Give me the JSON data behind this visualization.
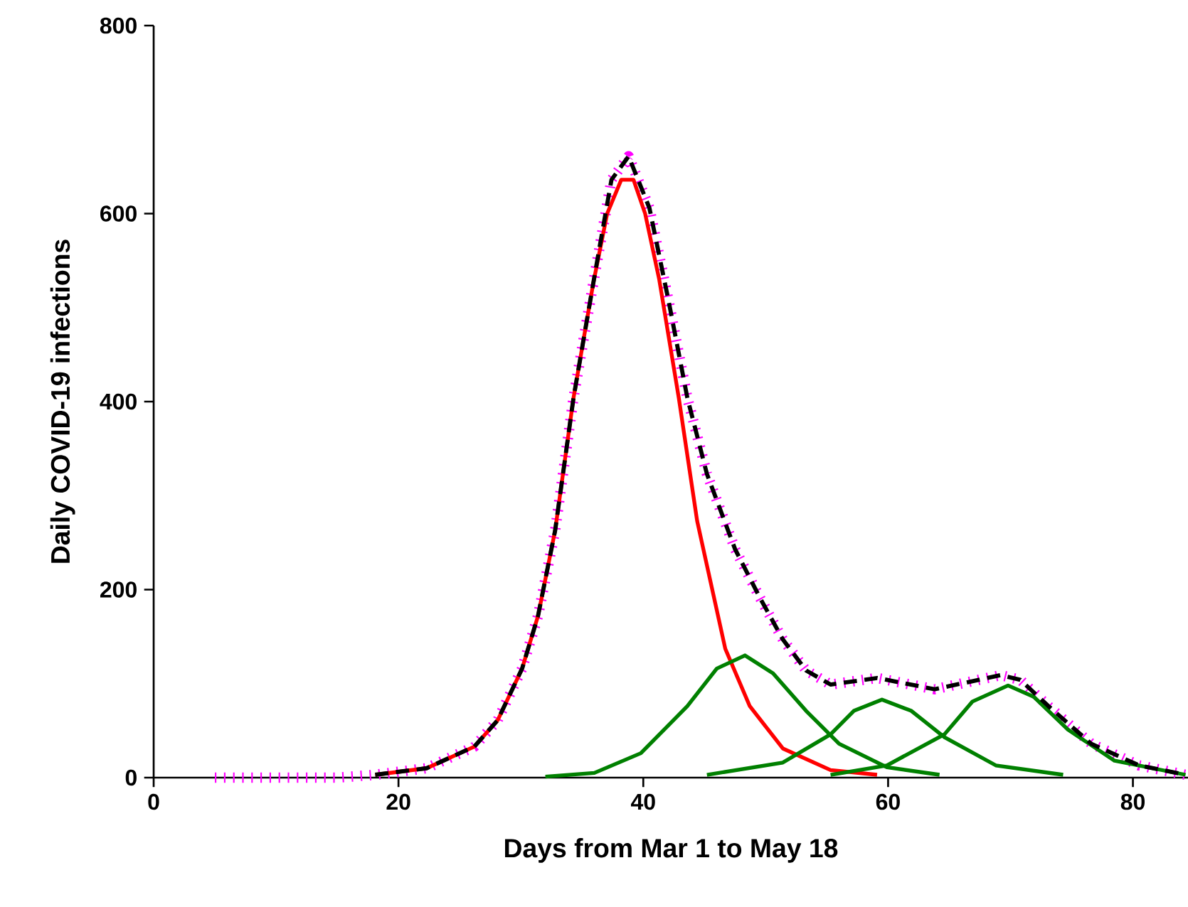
{
  "chart_data": {
    "type": "line",
    "xlabel": "Days from Mar 1 to May 18",
    "ylabel": "Daily COVID-19 infections",
    "xlim": [
      0,
      84.5
    ],
    "xticks": [
      0,
      20,
      40,
      60,
      80
    ],
    "ylim": [
      0,
      800
    ],
    "yticks": [
      0,
      200,
      400,
      600,
      800
    ],
    "marker": "none",
    "series": [
      {
        "color": "#ff00ff",
        "line_style": "dotted",
        "x": [
          5,
          10,
          15,
          18.1,
          22.3,
          26.2,
          28.1,
          30.1,
          31.4,
          32.8,
          34.3,
          35.9,
          37.4,
          38.8,
          40.5,
          42.1,
          43.6,
          45.2,
          47.5,
          49.5,
          51.4,
          53.3,
          55.3,
          59.1,
          63.8,
          69.2,
          70.8,
          73.1,
          76.6,
          80.5,
          84.3
        ],
        "values": [
          0,
          0,
          0,
          3,
          10,
          33,
          61,
          116,
          172,
          263,
          404,
          525,
          636,
          661,
          606,
          505,
          404,
          323,
          243,
          192,
          147,
          114,
          99,
          106,
          94,
          109,
          104,
          76,
          36,
          13,
          3
        ]
      },
      {
        "color": "#ff0000",
        "line_style": "solid",
        "x": [
          18.1,
          22.3,
          26.2,
          28.1,
          30.1,
          31.4,
          32.8,
          34.3,
          35.9,
          37.05,
          38.2,
          39.2,
          40.15,
          41.3,
          42.9,
          44.4,
          46.7,
          48.7,
          51.4,
          55.3,
          59.1
        ],
        "values": [
          3,
          10,
          33,
          61,
          116,
          172,
          263,
          404,
          525,
          600,
          636,
          636,
          600,
          530,
          404,
          273,
          137,
          76,
          31,
          8,
          3
        ]
      },
      {
        "color": "#008000",
        "line_style": "solid",
        "x": [
          32,
          36,
          39.8,
          43.6,
          46,
          48.3,
          50.6,
          53.3,
          56,
          59.9,
          64.2
        ],
        "values": [
          1,
          5,
          26,
          76,
          116,
          130,
          111,
          71,
          36,
          11,
          3
        ]
      },
      {
        "color": "#008000",
        "line_style": "solid",
        "x": [
          45.2,
          51.4,
          55.3,
          57.2,
          59.5,
          61.9,
          64.6,
          68.8,
          74.3
        ],
        "values": [
          3,
          16,
          46,
          71,
          83,
          71,
          43,
          13,
          3
        ]
      },
      {
        "color": "#008000",
        "line_style": "solid",
        "x": [
          55.3,
          59.9,
          64.6,
          66.9,
          69.8,
          71.9,
          74.7,
          78.5,
          84.3
        ],
        "values": [
          3,
          13,
          46,
          81,
          98,
          86,
          51,
          18,
          3
        ]
      },
      {
        "color": "#000000",
        "line_style": "dashed",
        "x": [
          18.1,
          22.3,
          26.2,
          28.1,
          30.1,
          31.4,
          32.8,
          34.3,
          35.9,
          37.4,
          38.8,
          40.5,
          42.1,
          43.6,
          45.2,
          47.5,
          49.5,
          51.4,
          53.3,
          55.3,
          59.1,
          63.8,
          69.2,
          70.8,
          73.1,
          76.6,
          80.5,
          84.3
        ],
        "values": [
          3,
          10,
          33,
          61,
          116,
          172,
          263,
          404,
          525,
          636,
          661,
          606,
          505,
          404,
          323,
          243,
          192,
          147,
          114,
          99,
          106,
          94,
          109,
          104,
          76,
          36,
          13,
          3
        ]
      }
    ]
  }
}
